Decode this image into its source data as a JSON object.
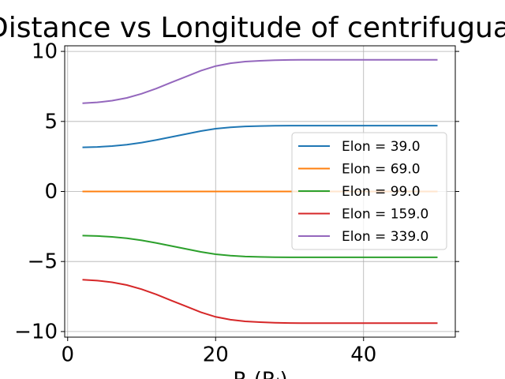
{
  "chart_data": {
    "type": "line",
    "title": "Distance vs Longitude of centrifugual",
    "x_label": "R (Rⱼ)",
    "x": [
      2,
      4,
      6,
      8,
      10,
      12,
      14,
      16,
      18,
      20,
      22,
      24,
      26,
      28,
      30,
      32,
      34,
      36,
      38,
      40,
      42,
      44,
      46,
      48,
      50
    ],
    "series": [
      {
        "name": "Elon = 39.0",
        "color": "#1f77b4",
        "values": [
          3.15,
          3.18,
          3.24,
          3.34,
          3.49,
          3.68,
          3.89,
          4.1,
          4.31,
          4.48,
          4.58,
          4.64,
          4.67,
          4.69,
          4.7,
          4.7,
          4.7,
          4.7,
          4.7,
          4.7,
          4.7,
          4.7,
          4.7,
          4.7,
          4.7
        ]
      },
      {
        "name": "Elon = 69.0",
        "color": "#ff7f0e",
        "values": [
          0,
          0,
          0,
          0,
          0,
          0,
          0,
          0,
          0,
          0,
          0,
          0,
          0,
          0,
          0,
          0,
          0,
          0,
          0,
          0,
          0,
          0,
          0,
          0,
          0
        ]
      },
      {
        "name": "Elon = 99.0",
        "color": "#2ca02c",
        "values": [
          -3.15,
          -3.18,
          -3.24,
          -3.34,
          -3.49,
          -3.68,
          -3.89,
          -4.1,
          -4.31,
          -4.48,
          -4.58,
          -4.64,
          -4.67,
          -4.69,
          -4.7,
          -4.7,
          -4.7,
          -4.7,
          -4.7,
          -4.7,
          -4.7,
          -4.7,
          -4.7,
          -4.7,
          -4.7
        ]
      },
      {
        "name": "Elon = 159.0",
        "color": "#d62728",
        "values": [
          -6.3,
          -6.36,
          -6.48,
          -6.68,
          -6.98,
          -7.35,
          -7.78,
          -8.2,
          -8.62,
          -8.95,
          -9.15,
          -9.27,
          -9.33,
          -9.37,
          -9.39,
          -9.4,
          -9.4,
          -9.4,
          -9.4,
          -9.4,
          -9.4,
          -9.4,
          -9.4,
          -9.4,
          -9.4
        ]
      },
      {
        "name": "Elon = 339.0",
        "color": "#9467bd",
        "values": [
          6.3,
          6.36,
          6.48,
          6.68,
          6.98,
          7.35,
          7.78,
          8.2,
          8.62,
          8.95,
          9.15,
          9.27,
          9.33,
          9.37,
          9.39,
          9.4,
          9.4,
          9.4,
          9.4,
          9.4,
          9.4,
          9.4,
          9.4,
          9.4,
          9.4
        ]
      }
    ],
    "xlim": [
      -0.4,
      52.4
    ],
    "xticks": [
      0,
      20,
      40
    ],
    "ylim": [
      -10.4,
      10.4
    ],
    "yticks": [
      {
        "value": -10,
        "label": "−10"
      },
      {
        "value": -5,
        "label": "−5"
      },
      0,
      5,
      10
    ],
    "grid": true,
    "legend": "right"
  }
}
